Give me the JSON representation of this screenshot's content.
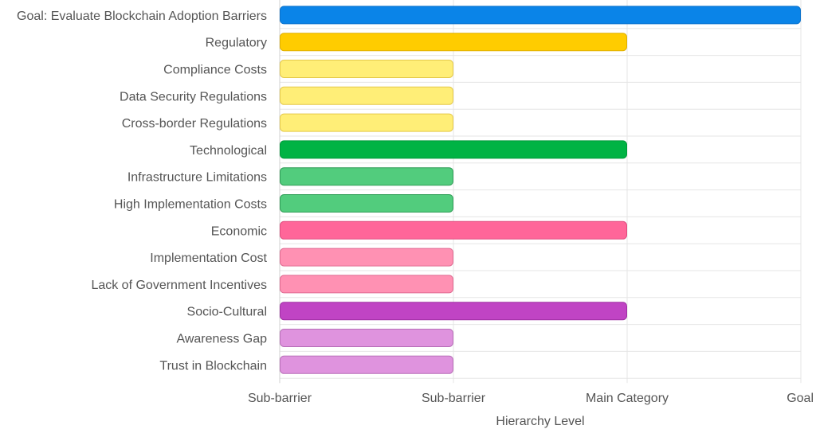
{
  "chart_data": {
    "type": "bar",
    "orientation": "horizontal",
    "xlabel": "Hierarchy Level",
    "ylabel": "",
    "title": "",
    "xlim": [
      0,
      3
    ],
    "x_ticks": [
      {
        "value": 0,
        "label": "Sub-barrier"
      },
      {
        "value": 1,
        "label": "Sub-barrier"
      },
      {
        "value": 2,
        "label": "Main Category"
      },
      {
        "value": 3,
        "label": "Goal"
      }
    ],
    "grid": true,
    "legend": "none",
    "categories": [
      "Goal: Evaluate Blockchain Adoption Barriers",
      "Regulatory",
      "Compliance Costs",
      "Data Security Regulations",
      "Cross-border Regulations",
      "Technological",
      "Infrastructure Limitations",
      "High Implementation Costs",
      "Economic",
      "Implementation Cost",
      "Lack of Government Incentives",
      "Socio-Cultural",
      "Awareness Gap",
      "Trust in Blockchain"
    ],
    "values": [
      3,
      2,
      1,
      1,
      1,
      2,
      1,
      1,
      2,
      1,
      1,
      2,
      1,
      1
    ],
    "colors": [
      "#0A84E8",
      "#FFCC00",
      "#FFEE77",
      "#FFEE77",
      "#FFEE77",
      "#00B344",
      "#52CC7D",
      "#52CC7D",
      "#FF6699",
      "#FF91B3",
      "#FF91B3",
      "#C044C4",
      "#DF93DE",
      "#DF93DE"
    ],
    "border_colors": [
      "#0A72CC",
      "#E0B000",
      "#E5C94A",
      "#E5C94A",
      "#E5C94A",
      "#009A3A",
      "#2F9E57",
      "#2F9E57",
      "#E04C7F",
      "#E06A91",
      "#E06A91",
      "#A030A4",
      "#B86FB8",
      "#B86FB8"
    ]
  }
}
